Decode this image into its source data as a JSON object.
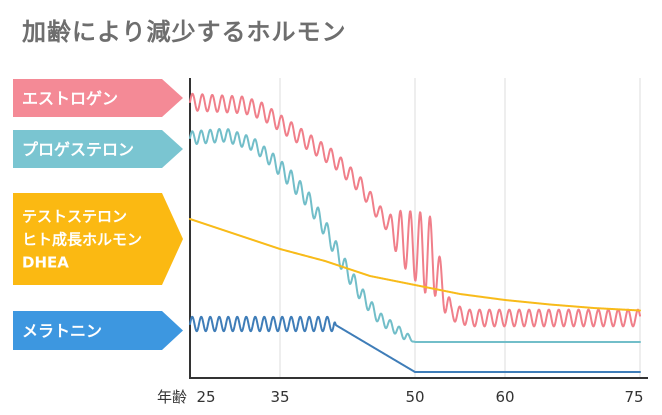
{
  "chart_data": {
    "type": "line",
    "title": "加齢により減少するホルモン",
    "xlabel": "年齢",
    "xlim": [
      25,
      75
    ],
    "ylim": [
      0,
      100
    ],
    "x_ticks": [
      25,
      35,
      50,
      60,
      75
    ],
    "x_tick_labels": [
      "25",
      "35",
      "50",
      "60",
      "75"
    ],
    "grid": "vertical",
    "legend": "left",
    "series": [
      {
        "name": "エストロゲン",
        "color": "#f07f8a",
        "label_color": "#f48a96",
        "label_lines": [
          "エストロゲン"
        ],
        "oscillation": {
          "period": 1.1,
          "amp": [
            [
              25,
              2.8
            ],
            [
              47,
              2.8
            ],
            [
              48.5,
              9
            ],
            [
              51.5,
              14
            ],
            [
              52.5,
              9
            ],
            [
              54,
              2.8
            ],
            [
              75,
              2.8
            ]
          ]
        },
        "points": [
          [
            25,
            92
          ],
          [
            31,
            91
          ],
          [
            33,
            89
          ],
          [
            35,
            85
          ],
          [
            38,
            79
          ],
          [
            41,
            73
          ],
          [
            44,
            64
          ],
          [
            46,
            55
          ],
          [
            48,
            48
          ],
          [
            50,
            44
          ],
          [
            52,
            40
          ],
          [
            53,
            30
          ],
          [
            54,
            22
          ],
          [
            56,
            20
          ],
          [
            60,
            20
          ],
          [
            75,
            20
          ]
        ]
      },
      {
        "name": "プロゲステロン",
        "color": "#72bec9",
        "label_color": "#7ac5d1",
        "label_lines": [
          "プロゲステロン"
        ],
        "oscillation": {
          "period": 1.0,
          "amp": [
            [
              25,
              2.2
            ],
            [
              33,
              2.2
            ],
            [
              36,
              3.0
            ],
            [
              42,
              3.0
            ],
            [
              46,
              2.0
            ],
            [
              49,
              1.5
            ],
            [
              50,
              0
            ],
            [
              75,
              0
            ]
          ]
        },
        "points": [
          [
            25,
            80
          ],
          [
            29,
            81
          ],
          [
            32,
            78
          ],
          [
            34,
            73
          ],
          [
            36,
            67
          ],
          [
            38,
            60
          ],
          [
            40,
            50
          ],
          [
            42,
            38
          ],
          [
            44,
            28
          ],
          [
            46,
            20
          ],
          [
            48,
            16
          ],
          [
            50,
            12
          ],
          [
            75,
            12
          ]
        ]
      },
      {
        "name": "テストステロン・ヒト成長ホルモン・DHEA",
        "color": "#f8bb1a",
        "label_color": "#fbb912",
        "label_lines": [
          "テストステロン",
          "ヒト成長ホルモン",
          "DHEA"
        ],
        "points": [
          [
            25,
            53
          ],
          [
            30,
            48
          ],
          [
            35,
            43
          ],
          [
            40,
            39
          ],
          [
            45,
            34
          ],
          [
            50,
            31
          ],
          [
            55,
            28
          ],
          [
            60,
            26
          ],
          [
            65,
            24.5
          ],
          [
            70,
            23.3
          ],
          [
            75,
            22.5
          ]
        ]
      },
      {
        "name": "メラトニン",
        "color": "#3f7db8",
        "label_color": "#3d97e0",
        "label_lines": [
          "メラトニン"
        ],
        "oscillation": {
          "period": 1.0,
          "amp": [
            [
              25,
              2.4
            ],
            [
              41,
              2.4
            ],
            [
              41.2,
              0
            ],
            [
              75,
              0
            ]
          ]
        },
        "points": [
          [
            25,
            18
          ],
          [
            41,
            18
          ],
          [
            50,
            2
          ],
          [
            75,
            2
          ]
        ]
      }
    ]
  }
}
